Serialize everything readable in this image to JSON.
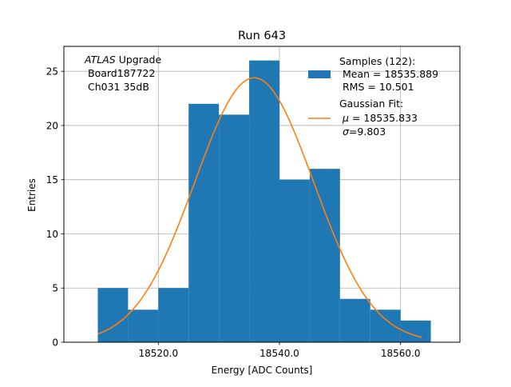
{
  "chart_data": {
    "type": "bar",
    "title": "Run 643",
    "xlabel": "Energy [ADC Counts]",
    "ylabel": "Entries",
    "xlim": [
      18504.4,
      18569.8
    ],
    "ylim": [
      0,
      27.3
    ],
    "grid": true,
    "legend_position": "top-right",
    "x_ticks": [
      18520,
      18540,
      18560
    ],
    "x_tick_labels": [
      "18520.0",
      "18540.0",
      "18560.0"
    ],
    "y_ticks": [
      0,
      5,
      10,
      15,
      20,
      25
    ],
    "y_tick_labels": [
      "0",
      "5",
      "10",
      "15",
      "20",
      "25"
    ],
    "bin_edges": [
      18510,
      18515,
      18520,
      18525,
      18530,
      18535,
      18540,
      18545,
      18550,
      18555,
      18560,
      18565
    ],
    "values": [
      5,
      3,
      5,
      22,
      21,
      26,
      15,
      16,
      4,
      3,
      2
    ],
    "bar_color": "#1f77b4",
    "fit": {
      "mu": 18535.833,
      "sigma": 9.803,
      "amplitude": 24.4,
      "x_range": [
        18510,
        18563.5
      ],
      "color": "#ff7f0e"
    },
    "annotation": [
      "ATLAS",
      " Upgrade",
      "Board187722",
      "Ch031 35dB"
    ],
    "legend": {
      "samples_label": "Samples (122):",
      "mean_line": "Mean = 18535.889",
      "rms_line": "RMS = 10.501",
      "fit_label": "Gaussian Fit:",
      "mu_symbol": "μ",
      "mu_value": " = 18535.833",
      "sigma_symbol": "σ",
      "sigma_value": "=9.803"
    }
  }
}
